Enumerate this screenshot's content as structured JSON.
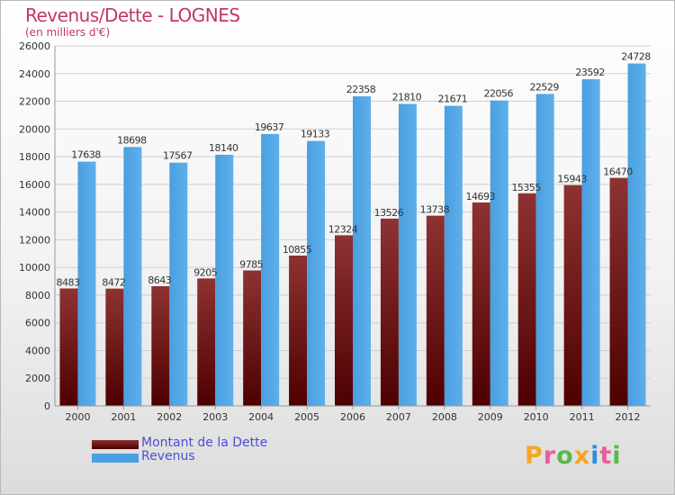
{
  "chart_data": {
    "type": "bar",
    "title": "Revenus/Dette - LOGNES",
    "subtitle": "(en milliers d'€)",
    "categories": [
      "2000",
      "2001",
      "2002",
      "2003",
      "2004",
      "2005",
      "2006",
      "2007",
      "2008",
      "2009",
      "2010",
      "2011",
      "2012"
    ],
    "series": [
      {
        "name": "Montant de la Dette",
        "color": "#7a1a1a",
        "values": [
          8483,
          8472,
          8643,
          9205,
          9785,
          10855,
          12324,
          13526,
          13738,
          14693,
          15355,
          15943,
          16470
        ],
        "labels": [
          "8483",
          "8472",
          "8643",
          "9205",
          "9785",
          "10855",
          "12324",
          "13526",
          "13738",
          "14693",
          "15355",
          "15943",
          "16470"
        ]
      },
      {
        "name": "Revenus",
        "color": "#4a9fe0",
        "values": [
          17638,
          18698,
          17567,
          18140,
          19637,
          19133,
          22358,
          21810,
          21671,
          22056,
          22529,
          23592,
          24728
        ],
        "labels": [
          "17638",
          "18698",
          "17567",
          "18140",
          "19637",
          "19133",
          "22358",
          "21810",
          "21671",
          "22056",
          "22529",
          "23592",
          "24728"
        ]
      }
    ],
    "ylim": [
      0,
      26000
    ],
    "yticks": [
      0,
      2000,
      4000,
      6000,
      8000,
      10000,
      12000,
      14000,
      16000,
      18000,
      20000,
      22000,
      24000,
      26000
    ],
    "grid": true,
    "legend_position": "bottom-left"
  },
  "legend": {
    "debt_label": "Montant de la Dette",
    "debt_color": "#6b0d0d",
    "revenue_label": "Revenus",
    "revenue_color": "#4a9fe0"
  },
  "logo": {
    "letters": [
      "P",
      "r",
      "o",
      "x",
      "i",
      "t",
      "i"
    ],
    "colors": [
      "#f5a623",
      "#e85d9c",
      "#58b947",
      "#f5a623",
      "#2f8fd8",
      "#e85d9c",
      "#58b947"
    ]
  }
}
